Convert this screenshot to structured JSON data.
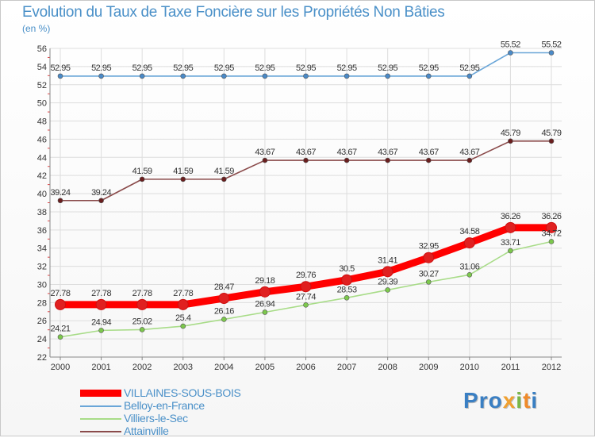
{
  "title": "Evolution du Taux de Taxe Foncière sur les Propriétés Non Bâties",
  "unit_label": "(en %)",
  "logo": {
    "text": "Proxiti",
    "letters": [
      "P",
      "r",
      "o",
      "x",
      "i",
      "t",
      "i"
    ],
    "colors": [
      "#3a7fc3",
      "#3a7fc3",
      "#3a7fc3",
      "#f0a030",
      "#7ab648",
      "#f08a2a",
      "#3a7fc3"
    ]
  },
  "chart_data": {
    "type": "line",
    "title": "Evolution du Taux de Taxe Foncière sur les Propriétés Non Bâties",
    "ylabel": "(en %)",
    "xlabel": "",
    "categories": [
      "2000",
      "2001",
      "2002",
      "2003",
      "2004",
      "2005",
      "2006",
      "2007",
      "2008",
      "2009",
      "2010",
      "2011",
      "2012"
    ],
    "ylim": [
      22,
      56
    ],
    "yticks": [
      22,
      24,
      26,
      28,
      30,
      32,
      34,
      36,
      38,
      40,
      42,
      44,
      46,
      48,
      50,
      52,
      54,
      56
    ],
    "grid": true,
    "legend_position": "bottom-left",
    "series": [
      {
        "name": "VILLAINES-SOUS-BOIS",
        "color": "#ff0000",
        "marker": "#e02020",
        "emphasis": true,
        "values": [
          27.78,
          27.78,
          27.78,
          27.78,
          28.47,
          29.18,
          29.76,
          30.5,
          31.41,
          32.95,
          34.58,
          36.26,
          36.26
        ],
        "labels": [
          "27.78",
          "27.78",
          "27.78",
          "27.78",
          "28.47",
          "29.18",
          "29.76",
          "30.5",
          "31.41",
          "32.95",
          "34.58",
          "36.26",
          "36.26"
        ]
      },
      {
        "name": "Belloy-en-France",
        "color": "#6aa6d8",
        "marker": "#4a8ac8",
        "emphasis": false,
        "values": [
          52.95,
          52.95,
          52.95,
          52.95,
          52.95,
          52.95,
          52.95,
          52.95,
          52.95,
          52.95,
          52.95,
          55.52,
          55.52
        ],
        "labels": [
          "52.95",
          "52.95",
          "52.95",
          "52.95",
          "52.95",
          "52.95",
          "52.95",
          "52.95",
          "52.95",
          "52.95",
          "52.95",
          "55.52",
          "55.52"
        ]
      },
      {
        "name": "Villiers-le-Sec",
        "color": "#a8dc88",
        "marker": "#7cc84c",
        "emphasis": false,
        "values": [
          24.21,
          24.94,
          25.02,
          25.4,
          26.16,
          26.94,
          27.74,
          28.53,
          29.39,
          30.27,
          31.06,
          33.71,
          34.72
        ],
        "labels": [
          "24.21",
          "24.94",
          "25.02",
          "25.4",
          "26.16",
          "26.94",
          "27.74",
          "28.53",
          "29.39",
          "30.27",
          "31.06",
          "33.71",
          "34.72"
        ]
      },
      {
        "name": "Attainville",
        "color": "#8a4a4a",
        "marker": "#6a1e1e",
        "emphasis": false,
        "values": [
          39.24,
          39.24,
          41.59,
          41.59,
          41.59,
          43.67,
          43.67,
          43.67,
          43.67,
          43.67,
          43.67,
          45.79,
          45.79
        ],
        "labels": [
          "39.24",
          "39.24",
          "41.59",
          "41.59",
          "41.59",
          "43.67",
          "43.67",
          "43.67",
          "43.67",
          "43.67",
          "43.67",
          "45.79",
          "45.79"
        ]
      }
    ]
  }
}
